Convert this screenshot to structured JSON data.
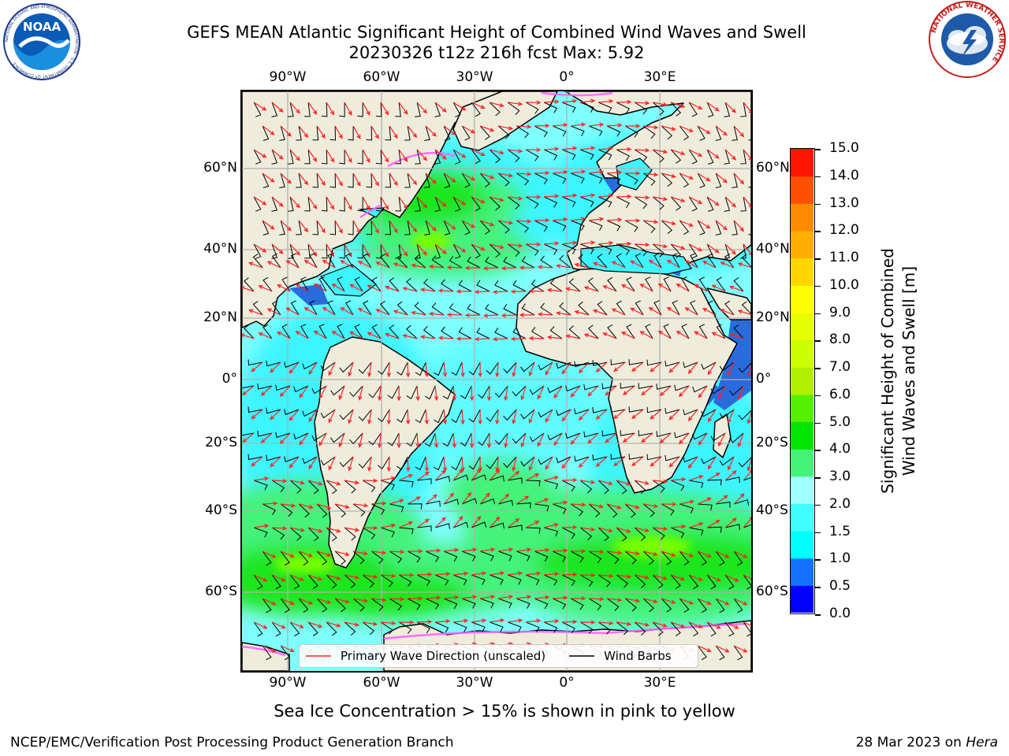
{
  "header": {
    "title_line1": "GEFS MEAN Atlantic Significant Height of Combined Wind Waves and Swell",
    "title_line2": "20230326 t12z 216h fcst   Max: 5.92"
  },
  "logos": {
    "noaa_text": "NOAA",
    "noaa_ring": "NATIONAL OCEANIC AND ATMOSPHERIC ADMINISTRATION · U.S. DEPARTMENT OF COMMERCE",
    "nws_ring": "NATIONAL WEATHER SERVICE"
  },
  "map": {
    "lon_ticks": [
      "90°W",
      "60°W",
      "30°W",
      "0°",
      "30°E"
    ],
    "lat_ticks_left": [
      "60°N",
      "40°N",
      "20°N",
      "0°",
      "20°S",
      "40°S",
      "60°S"
    ],
    "lat_ticks_right": [
      "60°N",
      "40°N",
      "20°N",
      "0°",
      "20°S",
      "40°S",
      "60°S"
    ],
    "colors": {
      "land": "#efecdc",
      "ocean_low": "#80ffff",
      "ocean_mid": "#3df5ff",
      "swell_green": "#44f27a",
      "swell_bright": "#1ee61e",
      "swell_peak": "#78ff00",
      "deep_blue": "#2a6bdc",
      "arrow": "#ff2020",
      "barb": "#000000",
      "grid": "#b0b0b0",
      "ice": "#ff60ff"
    }
  },
  "legend": {
    "primary_label": "Primary Wave Direction (unscaled)",
    "barb_label": "Wind Barbs"
  },
  "colorbar": {
    "label_line1": "Significant Height of Combined",
    "label_line2": "Wind Waves and Swell [m]",
    "ticks": [
      "0.0",
      "0.5",
      "1.0",
      "1.5",
      "2.0",
      "3.0",
      "4.0",
      "5.0",
      "6.0",
      "7.0",
      "8.0",
      "9.0",
      "10.0",
      "11.0",
      "12.0",
      "13.0",
      "14.0",
      "15.0"
    ],
    "colors": [
      "#0000ff",
      "#1470ff",
      "#00ffff",
      "#40ffff",
      "#a0ffff",
      "#44f27a",
      "#00e600",
      "#55f000",
      "#b3f000",
      "#ccff00",
      "#e6ff00",
      "#ffff00",
      "#ffd700",
      "#ffae00",
      "#ff8c00",
      "#ff5000",
      "#ff1400"
    ]
  },
  "caption": "Sea Ice Concentration > 15% is shown in pink to yellow",
  "footer": {
    "left": "NCEP/EMC/Verification Post Processing Product Generation Branch",
    "right_date": "28 Mar 2023 on ",
    "right_host": "Hera"
  }
}
